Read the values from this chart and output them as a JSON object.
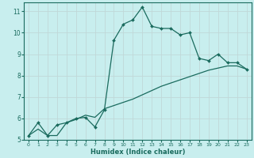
{
  "xlabel": "Humidex (Indice chaleur)",
  "xlim": [
    -0.5,
    23.5
  ],
  "ylim": [
    5,
    11.4
  ],
  "yticks": [
    5,
    6,
    7,
    8,
    9,
    10,
    11
  ],
  "xticks": [
    0,
    1,
    2,
    3,
    4,
    5,
    6,
    7,
    8,
    9,
    10,
    11,
    12,
    13,
    14,
    15,
    16,
    17,
    18,
    19,
    20,
    21,
    22,
    23
  ],
  "bg_color": "#c8eeee",
  "grid_color": "#aadddd",
  "line_color": "#1a6b5e",
  "line1_x": [
    0,
    1,
    2,
    3,
    4,
    5,
    6,
    7,
    8,
    9,
    10,
    11,
    12,
    13,
    14,
    15,
    16,
    17,
    18,
    19,
    20,
    21,
    22,
    23
  ],
  "line1_y": [
    5.2,
    5.8,
    5.2,
    5.7,
    5.8,
    6.0,
    6.05,
    5.6,
    6.4,
    9.65,
    10.4,
    10.6,
    11.2,
    10.3,
    10.2,
    10.2,
    9.9,
    10.0,
    8.8,
    8.7,
    9.0,
    8.6,
    8.6,
    8.3
  ],
  "line2_x": [
    0,
    1,
    2,
    3,
    4,
    5,
    6,
    7,
    8,
    9,
    10,
    11,
    12,
    13,
    14,
    15,
    16,
    17,
    18,
    19,
    20,
    21,
    22,
    23
  ],
  "line2_y": [
    5.2,
    5.5,
    5.2,
    5.2,
    5.8,
    5.95,
    6.15,
    6.05,
    6.45,
    6.6,
    6.75,
    6.9,
    7.1,
    7.3,
    7.5,
    7.65,
    7.8,
    7.95,
    8.1,
    8.25,
    8.35,
    8.45,
    8.45,
    8.3
  ]
}
